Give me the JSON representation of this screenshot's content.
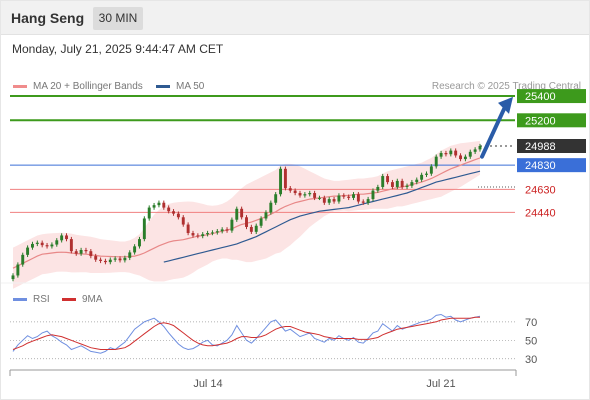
{
  "header": {
    "instrument": "Hang Seng",
    "timeframe": "30 MIN",
    "datetime": "Monday, July 21, 2025 9:44:47 AM CET"
  },
  "legend": {
    "ma20": "MA 20 + Bollinger Bands",
    "ma50": "MA 50",
    "credit": "Research © 2025 Trading Central"
  },
  "rsi_legend": {
    "rsi": "RSI",
    "ma9": "9MA"
  },
  "colors": {
    "candle_up": "#2a7d2a",
    "candle_down": "#b03030",
    "ma20": "#e88888",
    "ma50": "#2f5a91",
    "band_fill": "#fce4e4",
    "resistance": "#3d9a1c",
    "pivot": "#3a6fd8",
    "support": "#f08080",
    "last": "#333333",
    "arrow": "#2a5ca8",
    "rsi": "#6f8fe0",
    "rsi_ma": "#d03030"
  },
  "chart_data": {
    "type": "line",
    "title": "Hang Seng 30 MIN",
    "x_ticks": [
      "Jul 14",
      "Jul 21"
    ],
    "levels": [
      {
        "label": "25400",
        "value": 25400,
        "kind": "resistance"
      },
      {
        "label": "25200",
        "value": 25200,
        "kind": "resistance"
      },
      {
        "label": "24988",
        "value": 24988,
        "kind": "last"
      },
      {
        "label": "24830",
        "value": 24830,
        "kind": "pivot"
      },
      {
        "label": "24630",
        "value": 24630,
        "kind": "support"
      },
      {
        "label": "24440",
        "value": 24440,
        "kind": "support"
      }
    ],
    "price_close": [
      23920,
      24010,
      24090,
      24150,
      24180,
      24190,
      24170,
      24160,
      24175,
      24210,
      24250,
      24220,
      24120,
      24100,
      24130,
      24120,
      24080,
      24050,
      24040,
      24030,
      24050,
      24060,
      24045,
      24065,
      24110,
      24160,
      24220,
      24390,
      24480,
      24500,
      24520,
      24480,
      24450,
      24430,
      24400,
      24340,
      24270,
      24250,
      24245,
      24260,
      24270,
      24275,
      24285,
      24300,
      24290,
      24380,
      24470,
      24400,
      24320,
      24280,
      24330,
      24390,
      24440,
      24520,
      24590,
      24800,
      24640,
      24620,
      24600,
      24580,
      24590,
      24600,
      24560,
      24560,
      24520,
      24550,
      24530,
      24580,
      24570,
      24560,
      24590,
      24530,
      24520,
      24550,
      24620,
      24650,
      24740,
      24690,
      24650,
      24700,
      24650,
      24660,
      24690,
      24710,
      24750,
      24760,
      24820,
      24900,
      24930,
      24920,
      24950,
      24910,
      24880,
      24900,
      24940,
      24960,
      24988
    ],
    "ma20": [
      23980,
      24000,
      24020,
      24040,
      24060,
      24080,
      24095,
      24100,
      24105,
      24110,
      24112,
      24110,
      24105,
      24100,
      24098,
      24096,
      24090,
      24085,
      24080,
      24078,
      24076,
      24075,
      24074,
      24074,
      24076,
      24080,
      24090,
      24105,
      24125,
      24145,
      24165,
      24180,
      24195,
      24205,
      24210,
      24215,
      24225,
      24235,
      24245,
      24250,
      24255,
      24265,
      24275,
      24285,
      24295,
      24305,
      24325,
      24340,
      24350,
      24360,
      24375,
      24390,
      24405,
      24425,
      24445,
      24470,
      24490,
      24505,
      24520,
      24530,
      24540,
      24550,
      24555,
      24560,
      24565,
      24570,
      24575,
      24575,
      24580,
      24580,
      24585,
      24590,
      24590,
      24595,
      24600,
      24605,
      24615,
      24625,
      24635,
      24645,
      24650,
      24660,
      24670,
      24680,
      24690,
      24705,
      24720,
      24740,
      24760,
      24780,
      24800,
      24815,
      24830,
      24845,
      24860,
      24875,
      24890
    ],
    "ma50": [
      null,
      null,
      null,
      null,
      null,
      null,
      null,
      null,
      null,
      null,
      null,
      null,
      null,
      null,
      null,
      null,
      null,
      null,
      null,
      null,
      null,
      null,
      null,
      null,
      null,
      null,
      null,
      null,
      null,
      null,
      null,
      24030,
      24040,
      24050,
      24060,
      24070,
      24080,
      24090,
      24100,
      24110,
      24120,
      24130,
      24140,
      24150,
      24160,
      24170,
      24180,
      24195,
      24210,
      24225,
      24240,
      24260,
      24280,
      24300,
      24320,
      24340,
      24360,
      24380,
      24395,
      24410,
      24420,
      24430,
      24440,
      24450,
      24455,
      24460,
      24465,
      24470,
      24475,
      24480,
      24490,
      24500,
      24510,
      24520,
      24530,
      24540,
      24550,
      24560,
      24570,
      24580,
      24590,
      24600,
      24615,
      24630,
      24645,
      24660,
      24675,
      24690,
      24700,
      24710,
      24720,
      24730,
      24740,
      24750,
      24760,
      24770,
      24780
    ],
    "bb_upper": [
      24150,
      24170,
      24190,
      24210,
      24230,
      24250,
      24260,
      24265,
      24268,
      24270,
      24272,
      24270,
      24265,
      24255,
      24250,
      24245,
      24240,
      24230,
      24220,
      24215,
      24210,
      24205,
      24200,
      24200,
      24210,
      24230,
      24260,
      24310,
      24370,
      24420,
      24460,
      24490,
      24510,
      24520,
      24525,
      24528,
      24530,
      24528,
      24520,
      24510,
      24500,
      24495,
      24500,
      24510,
      24530,
      24560,
      24600,
      24640,
      24670,
      24690,
      24710,
      24730,
      24750,
      24770,
      24790,
      24830,
      24840,
      24840,
      24835,
      24820,
      24800,
      24780,
      24760,
      24740,
      24720,
      24710,
      24700,
      24700,
      24705,
      24710,
      24715,
      24720,
      24720,
      24725,
      24730,
      24740,
      24760,
      24780,
      24790,
      24800,
      24810,
      24820,
      24830,
      24840,
      24850,
      24870,
      24890,
      24920,
      24950,
      24970,
      24990,
      25000,
      25010,
      25015,
      25020,
      25025,
      25030
    ],
    "bb_lower": [
      23810,
      23830,
      23850,
      23870,
      23890,
      23910,
      23930,
      23935,
      23942,
      23950,
      23952,
      23950,
      23945,
      23945,
      23946,
      23947,
      23940,
      23940,
      23940,
      23941,
      23942,
      23945,
      23948,
      23948,
      23942,
      23930,
      23920,
      23900,
      23880,
      23870,
      23870,
      23870,
      23880,
      23890,
      23895,
      23902,
      23920,
      23942,
      23970,
      23990,
      24010,
      24035,
      24050,
      24060,
      24060,
      24050,
      24050,
      24040,
      24030,
      24030,
      24040,
      24050,
      24060,
      24080,
      24100,
      24110,
      24140,
      24170,
      24205,
      24240,
      24280,
      24320,
      24350,
      24380,
      24410,
      24430,
      24450,
      24450,
      24455,
      24450,
      24455,
      24460,
      24460,
      24465,
      24470,
      24470,
      24470,
      24470,
      24480,
      24490,
      24490,
      24500,
      24510,
      24520,
      24530,
      24540,
      24550,
      24560,
      24570,
      24590,
      24610,
      24630,
      24650,
      24675,
      24700,
      24725,
      24750
    ],
    "rsi": [
      38,
      45,
      50,
      55,
      52,
      54,
      58,
      60,
      55,
      52,
      48,
      45,
      40,
      42,
      44,
      41,
      38,
      37,
      36,
      38,
      42,
      40,
      44,
      48,
      55,
      62,
      66,
      70,
      72,
      74,
      70,
      65,
      58,
      52,
      46,
      42,
      40,
      41,
      44,
      48,
      50,
      45,
      44,
      47,
      50,
      56,
      66,
      58,
      50,
      47,
      52,
      58,
      64,
      70,
      72,
      66,
      60,
      62,
      58,
      54,
      56,
      58,
      52,
      50,
      48,
      52,
      50,
      55,
      52,
      50,
      53,
      48,
      47,
      52,
      58,
      60,
      68,
      64,
      60,
      66,
      62,
      64,
      66,
      68,
      70,
      71,
      73,
      77,
      78,
      75,
      76,
      72,
      70,
      72,
      74,
      75,
      76
    ],
    "rsi_ma": [
      40,
      42,
      44,
      47,
      49,
      51,
      53,
      55,
      56,
      55,
      54,
      52,
      50,
      48,
      46,
      44,
      42,
      41,
      40,
      40,
      40,
      40,
      41,
      42,
      45,
      49,
      53,
      57,
      61,
      65,
      68,
      69,
      68,
      66,
      62,
      58,
      54,
      50,
      47,
      45,
      44,
      44,
      45,
      46,
      47,
      49,
      52,
      54,
      54,
      53,
      53,
      54,
      56,
      59,
      62,
      64,
      65,
      65,
      63,
      61,
      59,
      58,
      57,
      56,
      54,
      53,
      52,
      52,
      52,
      52,
      52,
      51,
      51,
      51,
      52,
      53,
      56,
      58,
      60,
      62,
      63,
      64,
      65,
      66,
      67,
      68,
      69,
      70,
      72,
      73,
      74,
      74,
      74,
      74,
      74,
      75,
      75
    ],
    "rsi_levels": [
      70,
      50,
      30
    ],
    "y_range": [
      23800,
      25450
    ],
    "rsi_range": [
      20,
      85
    ]
  }
}
